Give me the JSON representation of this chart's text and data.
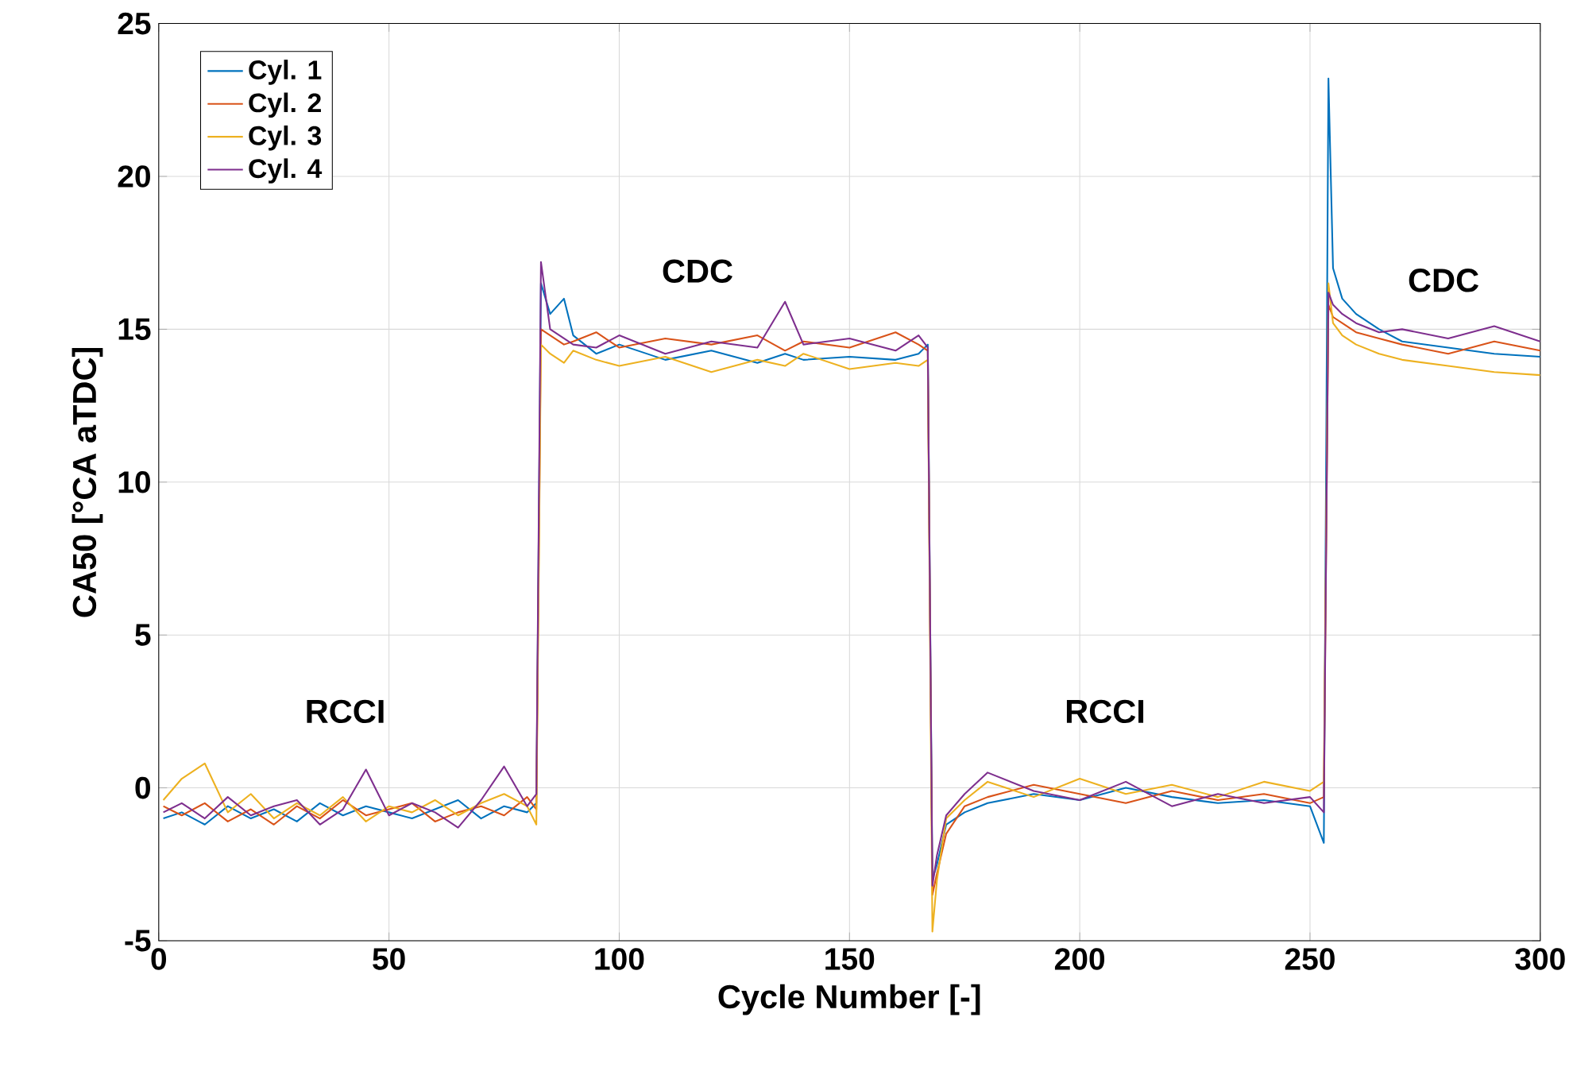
{
  "chart_data": {
    "type": "line",
    "xlabel": "Cycle Number [-]",
    "ylabel": "CA50 [°CA aTDC]",
    "x": [
      1,
      5,
      10,
      15,
      20,
      25,
      30,
      35,
      40,
      45,
      50,
      55,
      60,
      65,
      70,
      75,
      80,
      82,
      83,
      85,
      88,
      90,
      95,
      100,
      110,
      120,
      130,
      136,
      140,
      150,
      160,
      165,
      167,
      168,
      169,
      171,
      175,
      180,
      190,
      200,
      210,
      220,
      230,
      240,
      250,
      253,
      254,
      255,
      257,
      260,
      265,
      270,
      280,
      290,
      300
    ],
    "series": [
      {
        "name": "Cyl. 1",
        "color": "#0072bd",
        "values": [
          -1.0,
          -0.8,
          -1.2,
          -0.6,
          -1.0,
          -0.7,
          -1.1,
          -0.5,
          -0.9,
          -0.6,
          -0.8,
          -1.0,
          -0.7,
          -0.4,
          -1.0,
          -0.6,
          -0.8,
          -0.5,
          16.5,
          15.5,
          16.0,
          14.8,
          14.2,
          14.5,
          14.0,
          14.3,
          13.9,
          14.2,
          14.0,
          14.1,
          14.0,
          14.2,
          14.5,
          -3.0,
          -2.5,
          -1.2,
          -0.8,
          -0.5,
          -0.2,
          -0.4,
          0.0,
          -0.3,
          -0.5,
          -0.4,
          -0.6,
          -1.8,
          23.2,
          17.0,
          16.0,
          15.5,
          15.0,
          14.6,
          14.4,
          14.2,
          14.1
        ]
      },
      {
        "name": "Cyl. 2",
        "color": "#d95319",
        "values": [
          -0.6,
          -0.9,
          -0.5,
          -1.1,
          -0.7,
          -1.2,
          -0.6,
          -1.0,
          -0.4,
          -0.9,
          -0.7,
          -0.5,
          -1.1,
          -0.8,
          -0.6,
          -0.9,
          -0.3,
          -0.7,
          15.0,
          14.8,
          14.5,
          14.6,
          14.9,
          14.4,
          14.7,
          14.5,
          14.8,
          14.3,
          14.6,
          14.4,
          14.9,
          14.5,
          14.3,
          -3.5,
          -2.8,
          -1.5,
          -0.6,
          -0.3,
          0.1,
          -0.2,
          -0.5,
          -0.1,
          -0.4,
          -0.2,
          -0.5,
          -0.3,
          15.8,
          15.4,
          15.2,
          14.9,
          14.7,
          14.5,
          14.2,
          14.6,
          14.3
        ]
      },
      {
        "name": "Cyl. 3",
        "color": "#edb120",
        "values": [
          -0.4,
          0.3,
          0.8,
          -0.8,
          -0.2,
          -1.0,
          -0.5,
          -0.9,
          -0.3,
          -1.1,
          -0.6,
          -0.8,
          -0.4,
          -0.9,
          -0.5,
          -0.2,
          -0.6,
          -1.2,
          14.5,
          14.2,
          13.9,
          14.3,
          14.0,
          13.8,
          14.1,
          13.6,
          14.0,
          13.8,
          14.2,
          13.7,
          13.9,
          13.8,
          14.0,
          -4.7,
          -3.0,
          -1.0,
          -0.4,
          0.2,
          -0.3,
          0.3,
          -0.2,
          0.1,
          -0.3,
          0.2,
          -0.1,
          0.2,
          16.5,
          15.2,
          14.8,
          14.5,
          14.2,
          14.0,
          13.8,
          13.6,
          13.5
        ]
      },
      {
        "name": "Cyl. 4",
        "color": "#7e2f8e",
        "values": [
          -0.8,
          -0.5,
          -1.0,
          -0.3,
          -0.9,
          -0.6,
          -0.4,
          -1.2,
          -0.7,
          0.6,
          -0.9,
          -0.5,
          -0.8,
          -1.3,
          -0.4,
          0.7,
          -0.6,
          -0.2,
          17.2,
          15.0,
          14.7,
          14.5,
          14.4,
          14.8,
          14.2,
          14.6,
          14.4,
          15.9,
          14.5,
          14.7,
          14.3,
          14.8,
          14.4,
          -3.2,
          -2.2,
          -0.9,
          -0.2,
          0.5,
          -0.1,
          -0.4,
          0.2,
          -0.6,
          -0.2,
          -0.5,
          -0.3,
          -0.8,
          16.2,
          15.8,
          15.5,
          15.2,
          14.9,
          15.0,
          14.7,
          15.1,
          14.6
        ]
      }
    ],
    "xlim": [
      0,
      300
    ],
    "xticks": [
      0,
      50,
      100,
      150,
      200,
      250,
      300
    ],
    "ylim": [
      -5,
      25
    ],
    "yticks": [
      -5,
      0,
      5,
      10,
      15,
      20,
      25
    ],
    "grid": true,
    "legend": "top left",
    "marker": "none",
    "line_style": "solid",
    "annotations": [
      "RCCI",
      "CDC",
      "RCCI",
      "CDC"
    ]
  }
}
